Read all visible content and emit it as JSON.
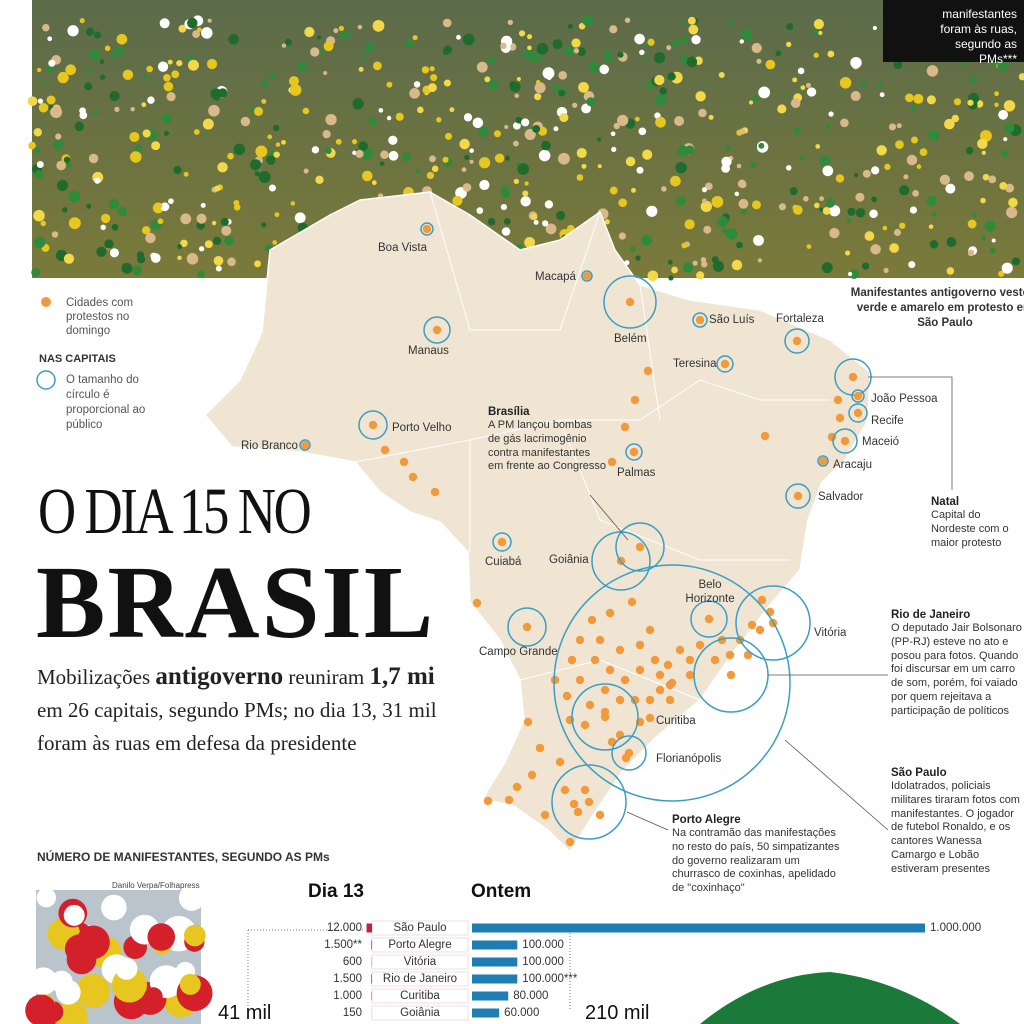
{
  "photo": {
    "caption": "Manifestantes antigoverno vestem verde e amarelo em protesto em São Paulo",
    "credit": "Danilo Verpa/Folhapress"
  },
  "top_box": "manifestantes foram às ruas, segundo as PMs***",
  "legend": {
    "cities": "Cidades com protestos no domingo",
    "heading": "NAS CAPITAIS",
    "circles": "O tamanho do círculo é proporcional ao público"
  },
  "headline": {
    "line1": "O DIA 15 NO",
    "line2": "BRASIL",
    "subtitle": [
      "Mobilizações",
      "antigoverno",
      "reuniram",
      "1,7 mi",
      "em 26 capitais, segundo PMs; no dia 13, 31 mil foram às ruas em defesa da presidente"
    ]
  },
  "map": {
    "cities": [
      "Boa Vista",
      "Macapá",
      "Manaus",
      "Belém",
      "São Luís",
      "Fortaleza",
      "Teresina",
      "João Pessoa",
      "Recife",
      "Maceió",
      "Aracaju",
      "Salvador",
      "Palmas",
      "Porto Velho",
      "Rio Branco",
      "Cuiabá",
      "Goiânia",
      "Campo Grande",
      "Belo Horizonte",
      "Vitória",
      "Curitiba",
      "Florianópolis"
    ]
  },
  "annotations": [
    {
      "title": "Brasília",
      "text": "A PM lançou bombas de gás lacrimogênio contra manifestantes em frente ao Congresso"
    },
    {
      "title": "Natal",
      "text": "Capital do Nordeste com o maior protesto"
    },
    {
      "title": "Rio de Janeiro",
      "text": "O deputado Jair Bolsonaro (PP-RJ) esteve no ato e posou para fotos. Quando foi discursar em um carro de som, porém, foi vaiado por quem rejeitava a participação de políticos"
    },
    {
      "title": "São Paulo",
      "text": "Idolatrados, policiais militares tiraram fotos com manifestantes. O jogador de futebol Ronaldo, e os cantores Wanessa Camargo e Lobão estiveram presentes"
    },
    {
      "title": "Porto Alegre",
      "text": "Na contramão das manifestações no resto do país, 50 simpatizantes do governo realizaram um churrasco de coxinhas, apelidado de \"coxinhaço\""
    }
  ],
  "chart_data": {
    "type": "bar",
    "title": "NÚMERO DE MANIFESTANTES, SEGUNDO AS PMs",
    "categories": [
      "São Paulo",
      "Porto Alegre",
      "Vitória",
      "Rio de Janeiro",
      "Curitiba",
      "Goiânia"
    ],
    "xlim": [
      0,
      1000000
    ],
    "series": [
      {
        "name": "Dia 13",
        "color": "#c0233a",
        "values": [
          12000,
          1500,
          600,
          1500,
          1000,
          150
        ],
        "value_labels": [
          "12.000",
          "1.500**",
          "600",
          "1.500",
          "1.000",
          "150"
        ]
      },
      {
        "name": "Ontem",
        "color": "#1f7db3",
        "values": [
          1000000,
          100000,
          100000,
          100000,
          80000,
          60000
        ],
        "value_labels": [
          "1.000.000",
          "100.000",
          "100.000",
          "100.000***",
          "80.000",
          "60.000"
        ]
      }
    ],
    "annotations": [
      "41 mil",
      "210 mil"
    ]
  }
}
